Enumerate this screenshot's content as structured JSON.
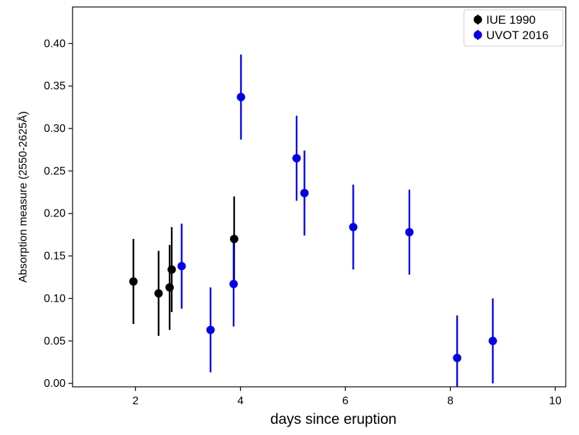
{
  "chart_data": {
    "type": "scatter",
    "title": "",
    "xlabel": "days since eruption",
    "ylabel": "Absorption measure (2550-2625Å)",
    "xlim": [
      0.8,
      10.2
    ],
    "ylim": [
      -0.004,
      0.443
    ],
    "x_ticks": [
      2,
      4,
      6,
      8,
      10
    ],
    "y_ticks": [
      0.0,
      0.05,
      0.1,
      0.15,
      0.2,
      0.25,
      0.3,
      0.35,
      0.4
    ],
    "x_tick_labels": [
      "2",
      "4",
      "6",
      "8",
      "10"
    ],
    "y_tick_labels": [
      "0.00",
      "0.05",
      "0.10",
      "0.15",
      "0.20",
      "0.25",
      "0.30",
      "0.35",
      "0.40"
    ],
    "grid": false,
    "legend_position": "top-right",
    "series": [
      {
        "name": "IUE 1990",
        "color": "#000000",
        "points": [
          {
            "x": 1.96,
            "y": 0.12,
            "err": 0.05
          },
          {
            "x": 2.44,
            "y": 0.106,
            "err": 0.05
          },
          {
            "x": 2.65,
            "y": 0.113,
            "err": 0.05
          },
          {
            "x": 2.69,
            "y": 0.134,
            "err": 0.05
          },
          {
            "x": 3.88,
            "y": 0.17,
            "err": 0.05
          }
        ]
      },
      {
        "name": "UVOT 2016",
        "color": "#0000ee",
        "points": [
          {
            "x": 2.88,
            "y": 0.138,
            "err": 0.05
          },
          {
            "x": 3.43,
            "y": 0.063,
            "err": 0.05
          },
          {
            "x": 3.87,
            "y": 0.117,
            "err": 0.05
          },
          {
            "x": 4.01,
            "y": 0.337,
            "err": 0.05
          },
          {
            "x": 5.07,
            "y": 0.265,
            "err": 0.05
          },
          {
            "x": 5.22,
            "y": 0.224,
            "err": 0.05
          },
          {
            "x": 6.15,
            "y": 0.184,
            "err": 0.05
          },
          {
            "x": 7.22,
            "y": 0.178,
            "err": 0.05
          },
          {
            "x": 8.13,
            "y": 0.03,
            "err": 0.05
          },
          {
            "x": 8.81,
            "y": 0.05,
            "err": 0.05
          }
        ]
      }
    ]
  }
}
